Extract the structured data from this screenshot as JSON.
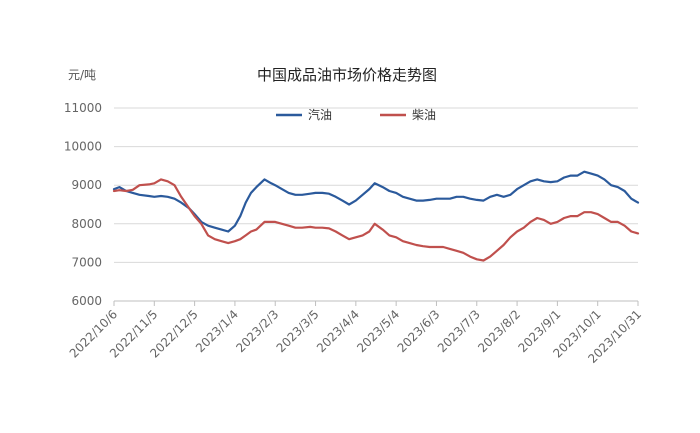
{
  "chart_data": {
    "type": "line",
    "title": "中国成品油市场价格走势图",
    "y_unit_label": "元/吨",
    "ylim": [
      6000,
      11000
    ],
    "y_ticks": [
      6000,
      7000,
      8000,
      9000,
      10000,
      11000
    ],
    "grid": "horizontal",
    "legend_position": "top",
    "x_tick_labels": [
      "2022/10/6",
      "2022/11/5",
      "2022/12/5",
      "2023/1/4",
      "2023/2/3",
      "2023/3/5",
      "2023/4/4",
      "2023/5/4",
      "2023/6/3",
      "2023/7/3",
      "2023/8/2",
      "2023/9/1",
      "2023/10/1",
      "2023/10/31"
    ],
    "series": [
      {
        "name": "汽油",
        "color": "#2b5a9c",
        "points": [
          [
            "2022/10/6",
            8900
          ],
          [
            "2022/10/10",
            8950
          ],
          [
            "2022/10/15",
            8850
          ],
          [
            "2022/10/20",
            8800
          ],
          [
            "2022/10/25",
            8750
          ],
          [
            "2022/11/1",
            8720
          ],
          [
            "2022/11/5",
            8700
          ],
          [
            "2022/11/10",
            8720
          ],
          [
            "2022/11/15",
            8700
          ],
          [
            "2022/11/20",
            8650
          ],
          [
            "2022/11/25",
            8550
          ],
          [
            "2022/12/1",
            8400
          ],
          [
            "2022/12/5",
            8250
          ],
          [
            "2022/12/10",
            8050
          ],
          [
            "2022/12/15",
            7950
          ],
          [
            "2022/12/20",
            7900
          ],
          [
            "2022/12/25",
            7850
          ],
          [
            "2022/12/30",
            7800
          ],
          [
            "2023/1/4",
            7950
          ],
          [
            "2023/1/8",
            8200
          ],
          [
            "2023/1/12",
            8550
          ],
          [
            "2023/1/16",
            8800
          ],
          [
            "2023/1/20",
            8950
          ],
          [
            "2023/1/26",
            9150
          ],
          [
            "2023/1/31",
            9050
          ],
          [
            "2023/2/3",
            9000
          ],
          [
            "2023/2/8",
            8900
          ],
          [
            "2023/2/13",
            8800
          ],
          [
            "2023/2/18",
            8750
          ],
          [
            "2023/2/23",
            8750
          ],
          [
            "2023/3/1",
            8780
          ],
          [
            "2023/3/5",
            8800
          ],
          [
            "2023/3/10",
            8800
          ],
          [
            "2023/3/15",
            8780
          ],
          [
            "2023/3/20",
            8700
          ],
          [
            "2023/3/25",
            8600
          ],
          [
            "2023/3/30",
            8500
          ],
          [
            "2023/4/4",
            8600
          ],
          [
            "2023/4/9",
            8750
          ],
          [
            "2023/4/14",
            8900
          ],
          [
            "2023/4/18",
            9050
          ],
          [
            "2023/4/24",
            8950
          ],
          [
            "2023/4/29",
            8850
          ],
          [
            "2023/5/4",
            8800
          ],
          [
            "2023/5/9",
            8700
          ],
          [
            "2023/5/14",
            8650
          ],
          [
            "2023/5/19",
            8600
          ],
          [
            "2023/5/24",
            8600
          ],
          [
            "2023/5/29",
            8620
          ],
          [
            "2023/6/3",
            8650
          ],
          [
            "2023/6/8",
            8650
          ],
          [
            "2023/6/13",
            8650
          ],
          [
            "2023/6/18",
            8700
          ],
          [
            "2023/6/23",
            8700
          ],
          [
            "2023/6/28",
            8650
          ],
          [
            "2023/7/3",
            8620
          ],
          [
            "2023/7/8",
            8600
          ],
          [
            "2023/7/13",
            8700
          ],
          [
            "2023/7/18",
            8750
          ],
          [
            "2023/7/23",
            8700
          ],
          [
            "2023/7/28",
            8750
          ],
          [
            "2023/8/2",
            8900
          ],
          [
            "2023/8/7",
            9000
          ],
          [
            "2023/8/12",
            9100
          ],
          [
            "2023/8/17",
            9150
          ],
          [
            "2023/8/22",
            9100
          ],
          [
            "2023/8/27",
            9080
          ],
          [
            "2023/9/1",
            9100
          ],
          [
            "2023/9/6",
            9200
          ],
          [
            "2023/9/11",
            9250
          ],
          [
            "2023/9/16",
            9250
          ],
          [
            "2023/9/21",
            9350
          ],
          [
            "2023/9/26",
            9300
          ],
          [
            "2023/10/1",
            9250
          ],
          [
            "2023/10/6",
            9150
          ],
          [
            "2023/10/11",
            9000
          ],
          [
            "2023/10/16",
            8950
          ],
          [
            "2023/10/21",
            8850
          ],
          [
            "2023/10/26",
            8650
          ],
          [
            "2023/10/31",
            8550
          ]
        ]
      },
      {
        "name": "柴油",
        "color": "#c0504d",
        "points": [
          [
            "2022/10/6",
            8850
          ],
          [
            "2022/10/10",
            8870
          ],
          [
            "2022/10/15",
            8850
          ],
          [
            "2022/10/20",
            8880
          ],
          [
            "2022/10/25",
            9000
          ],
          [
            "2022/11/1",
            9020
          ],
          [
            "2022/11/5",
            9050
          ],
          [
            "2022/11/10",
            9150
          ],
          [
            "2022/11/15",
            9100
          ],
          [
            "2022/11/20",
            9000
          ],
          [
            "2022/11/25",
            8700
          ],
          [
            "2022/12/1",
            8400
          ],
          [
            "2022/12/5",
            8200
          ],
          [
            "2022/12/10",
            8000
          ],
          [
            "2022/12/15",
            7700
          ],
          [
            "2022/12/20",
            7600
          ],
          [
            "2022/12/25",
            7550
          ],
          [
            "2022/12/30",
            7500
          ],
          [
            "2023/1/4",
            7550
          ],
          [
            "2023/1/8",
            7600
          ],
          [
            "2023/1/12",
            7700
          ],
          [
            "2023/1/16",
            7800
          ],
          [
            "2023/1/20",
            7850
          ],
          [
            "2023/1/26",
            8050
          ],
          [
            "2023/1/31",
            8050
          ],
          [
            "2023/2/3",
            8050
          ],
          [
            "2023/2/8",
            8000
          ],
          [
            "2023/2/13",
            7950
          ],
          [
            "2023/2/18",
            7900
          ],
          [
            "2023/2/23",
            7900
          ],
          [
            "2023/3/1",
            7920
          ],
          [
            "2023/3/5",
            7900
          ],
          [
            "2023/3/10",
            7900
          ],
          [
            "2023/3/15",
            7880
          ],
          [
            "2023/3/20",
            7800
          ],
          [
            "2023/3/25",
            7700
          ],
          [
            "2023/3/30",
            7600
          ],
          [
            "2023/4/4",
            7650
          ],
          [
            "2023/4/9",
            7700
          ],
          [
            "2023/4/14",
            7800
          ],
          [
            "2023/4/18",
            8000
          ],
          [
            "2023/4/24",
            7850
          ],
          [
            "2023/4/29",
            7700
          ],
          [
            "2023/5/4",
            7650
          ],
          [
            "2023/5/9",
            7550
          ],
          [
            "2023/5/14",
            7500
          ],
          [
            "2023/5/19",
            7450
          ],
          [
            "2023/5/24",
            7420
          ],
          [
            "2023/5/29",
            7400
          ],
          [
            "2023/6/3",
            7400
          ],
          [
            "2023/6/8",
            7400
          ],
          [
            "2023/6/13",
            7350
          ],
          [
            "2023/6/18",
            7300
          ],
          [
            "2023/6/23",
            7250
          ],
          [
            "2023/6/28",
            7150
          ],
          [
            "2023/7/3",
            7080
          ],
          [
            "2023/7/8",
            7050
          ],
          [
            "2023/7/13",
            7150
          ],
          [
            "2023/7/18",
            7300
          ],
          [
            "2023/7/23",
            7450
          ],
          [
            "2023/7/28",
            7650
          ],
          [
            "2023/8/2",
            7800
          ],
          [
            "2023/8/7",
            7900
          ],
          [
            "2023/8/12",
            8050
          ],
          [
            "2023/8/17",
            8150
          ],
          [
            "2023/8/22",
            8100
          ],
          [
            "2023/8/27",
            8000
          ],
          [
            "2023/9/1",
            8050
          ],
          [
            "2023/9/6",
            8150
          ],
          [
            "2023/9/11",
            8200
          ],
          [
            "2023/9/16",
            8200
          ],
          [
            "2023/9/21",
            8300
          ],
          [
            "2023/9/26",
            8300
          ],
          [
            "2023/10/1",
            8250
          ],
          [
            "2023/10/6",
            8150
          ],
          [
            "2023/10/11",
            8050
          ],
          [
            "2023/10/16",
            8050
          ],
          [
            "2023/10/21",
            7950
          ],
          [
            "2023/10/26",
            7800
          ],
          [
            "2023/10/31",
            7750
          ]
        ]
      }
    ]
  }
}
